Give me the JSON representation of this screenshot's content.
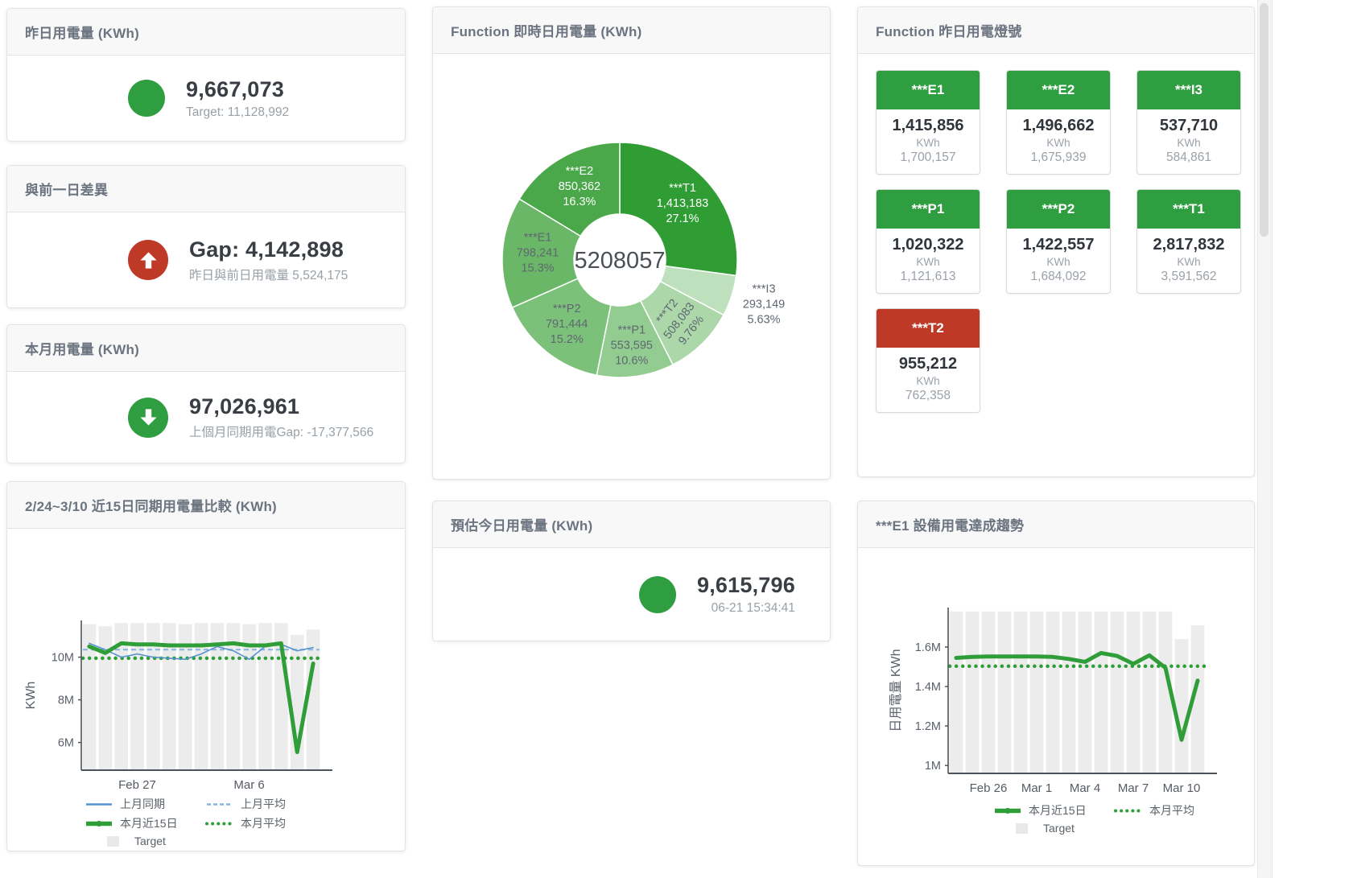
{
  "colors": {
    "green": "#2f9e41",
    "red": "#bf3a26",
    "chart_green": "#2f9e38",
    "chart_blue": "#5593d0",
    "chart_blue_light": "#85b4e0",
    "bar_grey": "#ececec"
  },
  "cards": {
    "yesterday": {
      "title": "昨日用電量 (KWh)",
      "value": "9,667,073",
      "subtitle": "Target: 11,128,992"
    },
    "day_gap": {
      "title": "與前一日差異",
      "value": "Gap: 4,142,898",
      "subtitle": "昨日與前日用電量 5,524,175"
    },
    "month": {
      "title": "本月用電量 (KWh)",
      "value": "97,026,961",
      "subtitle": "上個月同期用電Gap: -17,377,566"
    },
    "compare": {
      "title": "2/24~3/10 近15日同期用電量比較 (KWh)"
    },
    "donut": {
      "title": "Function 即時日用電量 (KWh)"
    },
    "estimate": {
      "title": "預估今日用電量 (KWh)",
      "value": "9,615,796",
      "subtitle": "06-21 15:34:41"
    },
    "lights": {
      "title": "Function 昨日用電燈號"
    },
    "trend": {
      "title": "***E1 設備用電達成趨勢"
    }
  },
  "lights_cards": [
    {
      "label": "***E1",
      "value": "1,415,856",
      "unit": "KWh",
      "target": "1,700,157",
      "status": "green"
    },
    {
      "label": "***E2",
      "value": "1,496,662",
      "unit": "KWh",
      "target": "1,675,939",
      "status": "green"
    },
    {
      "label": "***I3",
      "value": "537,710",
      "unit": "KWh",
      "target": "584,861",
      "status": "green"
    },
    {
      "label": "***P1",
      "value": "1,020,322",
      "unit": "KWh",
      "target": "1,121,613",
      "status": "green"
    },
    {
      "label": "***P2",
      "value": "1,422,557",
      "unit": "KWh",
      "target": "1,684,092",
      "status": "green"
    },
    {
      "label": "***T1",
      "value": "2,817,832",
      "unit": "KWh",
      "target": "3,591,562",
      "status": "green"
    },
    {
      "label": "***T2",
      "value": "955,212",
      "unit": "KWh",
      "target": "762,358",
      "status": "red"
    }
  ],
  "chart_data": [
    {
      "id": "realtime_donut",
      "type": "pie",
      "title": "Function 即時日用電量 (KWh)",
      "center_total": "5208057",
      "slices": [
        {
          "name": "***T1",
          "value": 1413183,
          "value_label": "1,413,183",
          "pct": "27.1%",
          "frac": 0.271,
          "color": "#2f9d33",
          "text": "light",
          "lr": 0.71
        },
        {
          "name": "***I3",
          "value": 293149,
          "value_label": "293,149",
          "pct": "5.63%",
          "frac": 0.0563,
          "color": "#bfe0bd",
          "text": "dark",
          "outside": true
        },
        {
          "name": "***T2",
          "value": 508083,
          "value_label": "508,083",
          "pct": "9.76%",
          "frac": 0.0976,
          "color": "#abd7a9",
          "text": "dark",
          "lr": 0.74,
          "rotate": -52
        },
        {
          "name": "***P1",
          "value": 553595,
          "value_label": "553,595",
          "pct": "10.6%",
          "frac": 0.106,
          "color": "#93cc91",
          "text": "dark",
          "lr": 0.75
        },
        {
          "name": "***P2",
          "value": 791444,
          "value_label": "791,444",
          "pct": "15.2%",
          "frac": 0.152,
          "color": "#7cc17a",
          "text": "dark",
          "lr": 0.72
        },
        {
          "name": "***E1",
          "value": 798241,
          "value_label": "798,241",
          "pct": "15.3%",
          "frac": 0.153,
          "color": "#69b767",
          "text": "dark",
          "lr": 0.7
        },
        {
          "name": "***E2",
          "value": 850362,
          "value_label": "850,362",
          "pct": "16.3%",
          "frac": 0.163,
          "color": "#4aa84b",
          "text": "light",
          "lr": 0.7
        }
      ]
    },
    {
      "id": "compare",
      "type": "line",
      "title": "2/24~3/10 近15日同期用電量比較 (KWh)",
      "ylabel": "KWh",
      "unit": "millions KWh",
      "ylim": [
        4.7,
        11.72
      ],
      "yticks": [
        {
          "v": 6,
          "label": "6M"
        },
        {
          "v": 8,
          "label": "8M"
        },
        {
          "v": 10,
          "label": "10M"
        }
      ],
      "xticks": [
        {
          "i": 3,
          "label": "Feb 27"
        },
        {
          "i": 10,
          "label": "Mar 6"
        }
      ],
      "bar_color": "#ececec",
      "target_bars": [
        11.55,
        11.45,
        11.6,
        11.6,
        11.6,
        11.6,
        11.55,
        11.6,
        11.6,
        11.6,
        11.55,
        11.6,
        11.6,
        11.05,
        11.3
      ],
      "series": [
        {
          "name": "上月同期",
          "values": [
            10.65,
            10.35,
            10.0,
            10.15,
            10.0,
            9.95,
            9.9,
            10.15,
            10.5,
            10.3,
            9.9,
            10.5,
            10.6,
            10.3,
            10.45
          ],
          "color": "#5593d0",
          "width": 1.6
        },
        {
          "name": "本月近15日",
          "values": [
            10.5,
            10.2,
            10.65,
            10.6,
            10.6,
            10.55,
            10.55,
            10.55,
            10.6,
            10.65,
            10.55,
            10.55,
            10.65,
            5.55,
            9.7
          ],
          "color": "#2f9e38",
          "width": 5
        }
      ],
      "avg_lines": [
        {
          "name": "上月平均",
          "v": 10.35,
          "color": "#85b4e0",
          "style": "dash"
        },
        {
          "name": "本月平均",
          "v": 9.95,
          "color": "#2f9e38",
          "style": "dot"
        }
      ],
      "legend": [
        [
          {
            "swatch": "line",
            "color": "#5593d0",
            "label": "上月同期"
          },
          {
            "swatch": "dash",
            "color": "#85b4e0",
            "label": "上月平均"
          }
        ],
        [
          {
            "swatch": "thick",
            "color": "#2f9e38",
            "label": "本月近15日"
          },
          {
            "swatch": "dots",
            "color": "#2f9e38",
            "label": "本月平均"
          }
        ],
        [
          {
            "swatch": "square",
            "color": "#e9e9e9",
            "label": "Target"
          }
        ]
      ]
    },
    {
      "id": "e1_trend",
      "type": "line",
      "title": "***E1 設備用電達成趨勢",
      "ylabel": "日用電量 KWh",
      "unit": "millions KWh",
      "ylim": [
        0.96,
        1.8
      ],
      "yticks": [
        {
          "v": 1,
          "label": "1M"
        },
        {
          "v": 1.2,
          "label": "1.2M"
        },
        {
          "v": 1.4,
          "label": "1.4M"
        },
        {
          "v": 1.6,
          "label": "1.6M"
        }
      ],
      "xticks": [
        {
          "i": 2,
          "label": "Feb 26"
        },
        {
          "i": 5,
          "label": "Mar 1"
        },
        {
          "i": 8,
          "label": "Mar 4"
        },
        {
          "i": 11,
          "label": "Mar 7"
        },
        {
          "i": 14,
          "label": "Mar 10"
        }
      ],
      "bar_color": "#ececec",
      "target_bars": [
        1.78,
        1.78,
        1.78,
        1.78,
        1.78,
        1.78,
        1.78,
        1.78,
        1.78,
        1.78,
        1.78,
        1.78,
        1.78,
        1.78,
        1.64,
        1.71
      ],
      "series": [
        {
          "name": "本月近15日",
          "values": [
            1.545,
            1.55,
            1.552,
            1.552,
            1.552,
            1.552,
            1.55,
            1.54,
            1.525,
            1.57,
            1.555,
            1.515,
            1.558,
            1.495,
            1.13,
            1.43
          ],
          "color": "#2f9e38",
          "width": 5
        }
      ],
      "avg_lines": [
        {
          "name": "本月平均",
          "v": 1.503,
          "color": "#2f9e38",
          "style": "dot"
        }
      ],
      "legend": [
        [
          {
            "swatch": "thick",
            "color": "#2f9e38",
            "label": "本月近15日"
          },
          {
            "swatch": "dots",
            "color": "#2f9e38",
            "label": "本月平均"
          }
        ],
        [
          {
            "swatch": "square",
            "color": "#e9e9e9",
            "label": "Target"
          }
        ]
      ]
    }
  ]
}
